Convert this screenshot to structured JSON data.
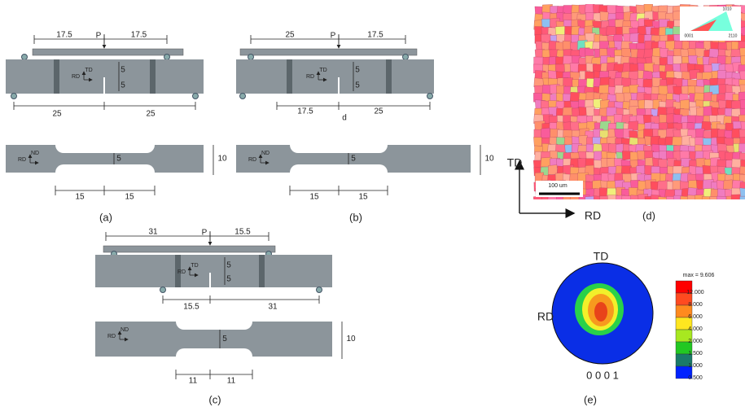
{
  "panels": {
    "a": {
      "label": "(a)",
      "top_dims": [
        "17.5",
        "P",
        "17.5"
      ],
      "axes": [
        "TD",
        "RD"
      ],
      "half": [
        "5",
        "5"
      ],
      "bottom_dims": [
        "25",
        "25"
      ],
      "lower_axes": [
        "ND",
        "RD"
      ],
      "lower_half": "5",
      "width": "10",
      "lower_dims": [
        "15",
        "15"
      ]
    },
    "b": {
      "label": "(b)",
      "top_dims": [
        "25",
        "P",
        "17.5"
      ],
      "axes": [
        "TD",
        "RD"
      ],
      "half": [
        "5",
        "5"
      ],
      "bottom_dims": [
        "17.5",
        "d",
        "25"
      ],
      "lower_axes": [
        "ND",
        "RD"
      ],
      "lower_half": "5",
      "width": "10",
      "lower_dims": [
        "15",
        "15"
      ]
    },
    "c": {
      "label": "(c)",
      "top_dims": [
        "31",
        "P",
        "15.5"
      ],
      "axes": [
        "TD",
        "RD"
      ],
      "half": [
        "5",
        "5"
      ],
      "bottom_dims": [
        "15.5",
        "31"
      ],
      "lower_axes": [
        "ND",
        "RD"
      ],
      "lower_half": "5",
      "width": "10",
      "lower_dims": [
        "11",
        "11"
      ]
    },
    "d": {
      "label": "(d)",
      "scale_bar": "100 um",
      "axes": [
        "TD",
        "RD"
      ],
      "key": [
        "0001",
        "2110",
        "1010"
      ]
    },
    "e": {
      "label": "(e)",
      "top": "TD",
      "left": "RD",
      "plane": "0 0 0 1",
      "max": "max = 9.606",
      "legend": [
        "12.000",
        "8.000",
        "6.000",
        "4.000",
        "2.000",
        "1.500",
        "1.000",
        "0.500"
      ]
    }
  }
}
